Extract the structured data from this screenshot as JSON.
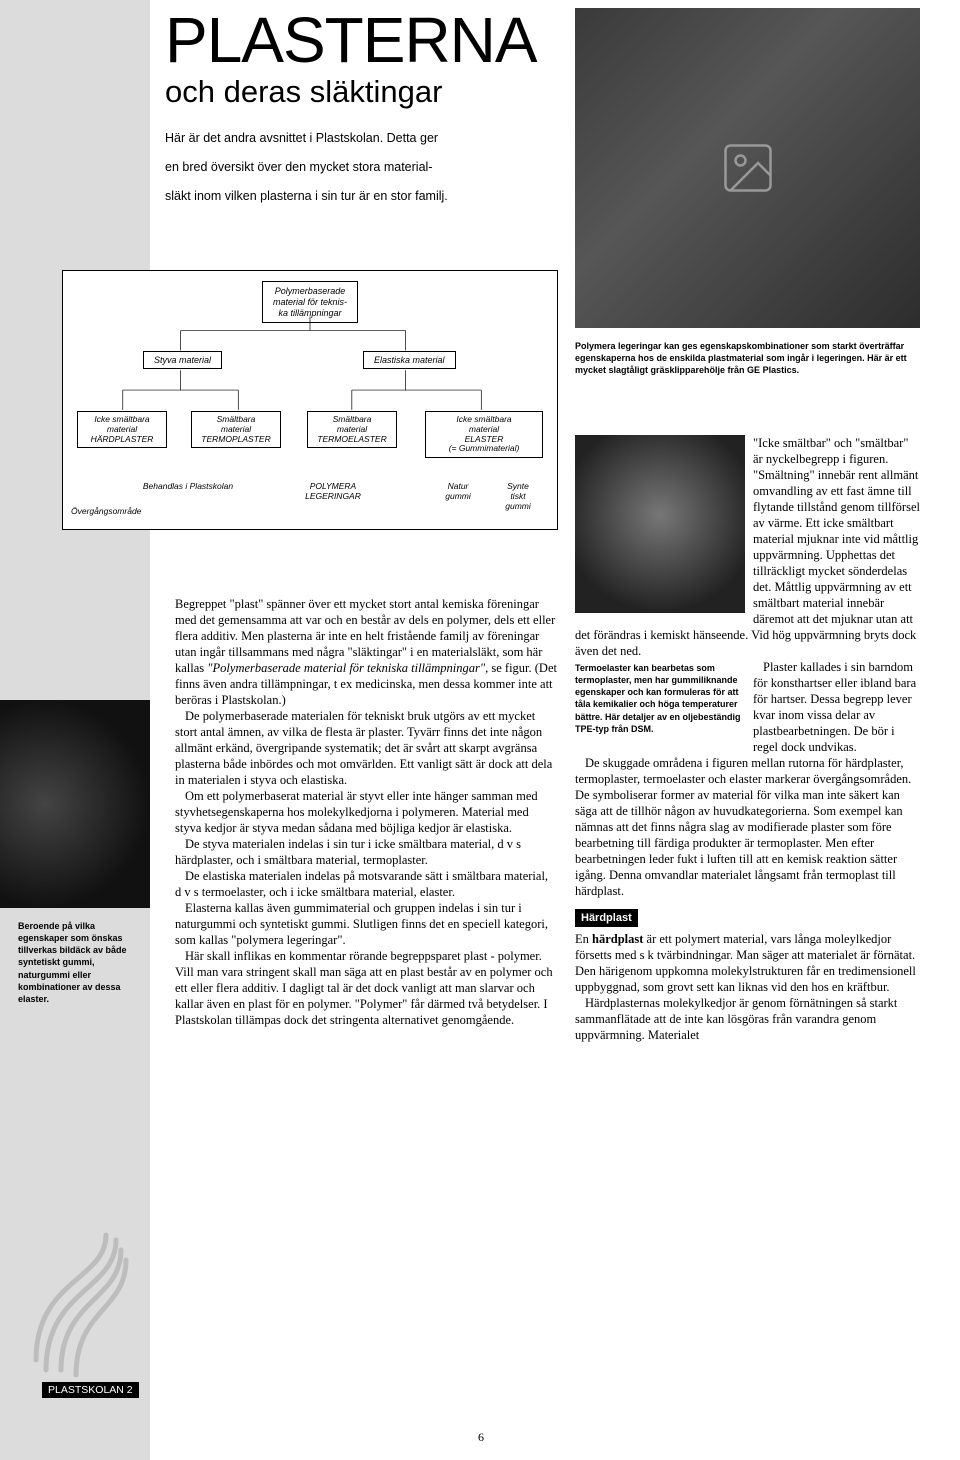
{
  "page": {
    "number": "6",
    "tag": "PLASTSKOLAN 2"
  },
  "title": {
    "main": "PLASTERNA",
    "sub": "och deras släktingar"
  },
  "intro": {
    "line1": "Här är det andra avsnittet i Plastskolan. Detta ger",
    "line2": "en bred översikt över den mycket stora material-",
    "line3": "släkt inom vilken plasterna i sin tur är en stor familj."
  },
  "diagram": {
    "root": "Polymerbaserade\nmaterial för teknis-\nka tillämpningar",
    "mid_left": "Styva material",
    "mid_right": "Elastiska material",
    "leaf1": "Icke smältbara\nmaterial\nHÄRDPLASTER",
    "leaf2": "Smältbara\nmaterial\nTERMOPLASTER",
    "leaf3": "Smältbara\nmaterial\nTERMOELASTER",
    "leaf4": "Icke smältbara\nmaterial\nELASTER\n(= Gummimaterial)",
    "bot1": "Behandlas i Plastskolan",
    "bot2": "POLYMERA\nLEGERINGAR",
    "bot3": "Natur\ngummi",
    "bot4": "Synte\ntiskt\ngummi",
    "bot_side": "Övergångsområde"
  },
  "hero_caption": "Polymera legeringar kan ges egenskapskombinationer som starkt överträffar egenskaperna hos de enskilda plastmaterial som ingår i legeringen. Här är ett mycket slagtåligt gräsklipparehölje från GE Plastics.",
  "inset_caption": "Termoelaster kan bearbetas som termoplaster, men har gummiliknande egenskaper och kan formuleras för att tåla kemikalier och höga temperaturer bättre. Här detaljer av en oljebeständig TPE-typ från DSM.",
  "tire_caption": "Beroende på vilka egenskaper som önskas tillverkas bildäck av både syntetiskt gummi, naturgummi eller kombinationer av dessa elaster.",
  "center": {
    "p1a": "Begreppet \"plast\" spänner över ett mycket stort antal kemiska föreningar med det gemensamma att var och en består av dels en polymer, dels ett eller flera additiv. Men plasterna är inte en helt fristående familj av föreningar utan ingår tillsammans med några \"släktingar\" i en materialsläkt, som här kallas ",
    "p1_it": "\"Polymerbaserade material för tekniska tillämpningar\"",
    "p1b": ", se figur. (Det finns även andra tillämpningar, t ex medicinska, men dessa kommer inte att beröras i Plastskolan.)",
    "p2": "De polymerbaserade materialen för tekniskt bruk utgörs av ett mycket stort antal ämnen, av vilka de flesta är plaster. Tyvärr finns det inte någon allmänt erkänd, övergripande systematik; det är svårt att skarpt avgränsa plasterna både inbördes och mot omvärlden. Ett vanligt sätt är dock att dela in materialen i styva och elastiska.",
    "p3": "Om ett polymerbaserat material är styvt eller inte hänger samman med styvhetsegenskaperna hos molekylkedjorna i polymeren. Material med styva kedjor är styva medan sådana med böjliga kedjor är elastiska.",
    "p4": "De styva materialen indelas i sin tur i icke smältbara material, d v s härdplaster, och i smältbara material, termoplaster.",
    "p5": "De elastiska materialen indelas på motsvarande sätt i smältbara material, d v s termoelaster, och i icke smältbara material, elaster.",
    "p6": "Elasterna kallas även gummimaterial och gruppen indelas i sin tur i naturgummi och syntetiskt gummi. Slutligen finns det en speciell kategori, som kallas \"polymera legeringar\".",
    "p7": "Här skall inflikas en kommentar rörande begreppsparet plast - polymer. Vill man vara stringent skall man säga att en plast består av en polymer och ett eller flera additiv. I dagligt tal är det dock vanligt att man slarvar och kallar även en plast för en polymer. \"Polymer\" får därmed två betydelser. I Plastskolan tillämpas dock det stringenta alternativet genomgående."
  },
  "right": {
    "p1": "\"Icke smältbar\" och \"smältbar\" är nyckelbegrepp i figuren. \"Smältning\" innebär rent allmänt omvandling av ett fast ämne till flytande tillstånd genom tillförsel av värme. Ett icke smältbart material mjuknar inte vid måttlig uppvärmning. Upphettas det tillräckligt mycket sönderdelas det. Måttlig uppvärmning av ett smältbart material innebär däremot att det mjuknar utan att det förändras i kemiskt hänseende. Vid hög uppvärmning bryts dock även det ned.",
    "p2": "Plaster kallades i sin barndom för konsthartser eller ibland bara för hartser. Dessa begrepp lever kvar inom vissa delar av plastbearbetningen. De bör i regel dock undvikas.",
    "p3": "De skuggade områdena i figuren mellan rutorna för härdplaster, termoplaster, termoelaster och elaster markerar övergångsområden. De symboliserar former av material för vilka man inte säkert kan säga att de tillhör någon av huvudkategorierna. Som exempel kan nämnas att det finns några slag av modifierade plaster som före bearbetning till färdiga produkter är termoplaster. Men efter bearbetningen leder fukt i luften till att en kemisk reaktion sätter igång. Denna omvandlar materialet långsamt från termoplast till härdplast.",
    "band": "Härdplast",
    "p4": "En härdplast är ett polymert material, vars långa moleylkedjor försetts med s k tvärbindningar. Man säger att materialet är förnätat. Den härigenom uppkomna molekylstrukturen får en tredimensionell uppbyggnad, som grovt sett kan liknas vid den hos en kräftbur.",
    "p4_bold": "härdplast",
    "p5": "Härdplasternas molekylkedjor är genom förnätningen så starkt sammanflätade att de inte kan lösgöras från varandra genom uppvärmning. Materialet"
  },
  "colors": {
    "sidebar": "#dcdcdc",
    "text": "#000000",
    "band_bg": "#000000",
    "band_fg": "#ffffff"
  }
}
